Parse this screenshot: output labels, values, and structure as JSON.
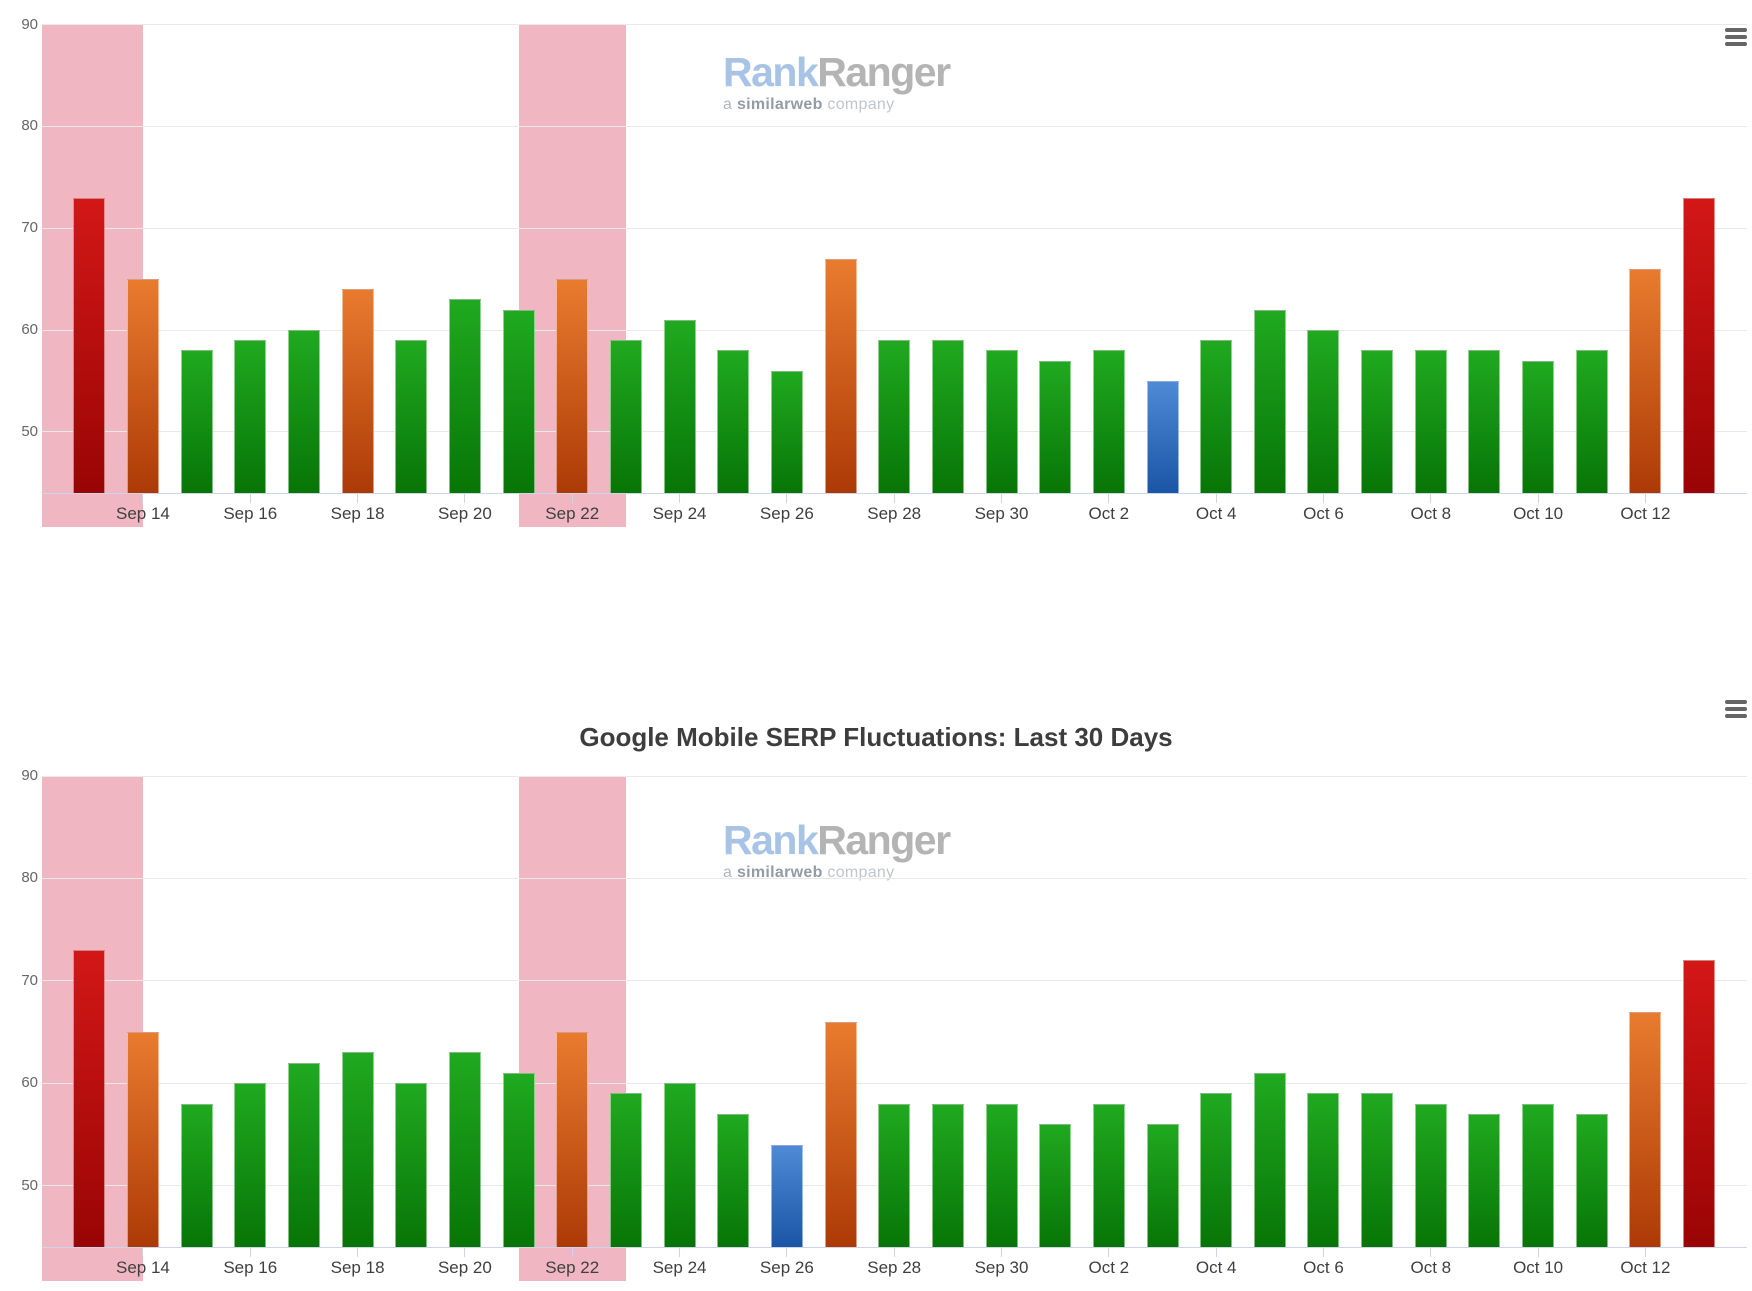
{
  "watermark": {
    "brand_primary": "Rank",
    "brand_secondary": "Ranger",
    "tagline_prefix": "a",
    "tagline_brand": "similarweb",
    "tagline_suffix": "company"
  },
  "icons": {
    "chart_menu": "hamburger-menu-icon"
  },
  "colors": {
    "green_top": "#20a920",
    "green_bottom": "#077506",
    "orange_top": "#e97b2f",
    "orange_bottom": "#ad3a06",
    "red_top": "#d31717",
    "red_bottom": "#9a0404",
    "blue_top": "#4e8ad6",
    "blue_bottom": "#1b55a6",
    "plot_band": "#f0b6c1",
    "grid_line": "#e9e9e9",
    "axis_line": "#ccd6eb",
    "x_label": "#3f3f3f",
    "y_label": "#666666",
    "title": "#3d3d3d",
    "menu_icon": "#666666",
    "logo_rank": "#a7c3e6",
    "logo_ranger": "#b4b4b4",
    "background": "#ffffff"
  },
  "chart_data": [
    {
      "type": "bar",
      "title": "",
      "categories": [
        "Sep 13",
        "Sep 14",
        "Sep 15",
        "Sep 16",
        "Sep 17",
        "Sep 18",
        "Sep 19",
        "Sep 20",
        "Sep 21",
        "Sep 22",
        "Sep 23",
        "Sep 24",
        "Sep 25",
        "Sep 26",
        "Sep 27",
        "Sep 28",
        "Sep 29",
        "Sep 30",
        "Oct 1",
        "Oct 2",
        "Oct 3",
        "Oct 4",
        "Oct 5",
        "Oct 6",
        "Oct 7",
        "Oct 8",
        "Oct 9",
        "Oct 10",
        "Oct 11",
        "Oct 12",
        "Oct 13"
      ],
      "values": [
        73,
        65,
        58,
        59,
        60,
        64,
        59,
        63,
        62,
        65,
        59,
        61,
        58,
        56,
        67,
        59,
        59,
        58,
        57,
        58,
        55,
        59,
        62,
        60,
        58,
        58,
        58,
        57,
        58,
        66,
        73
      ],
      "bar_colors": [
        "red",
        "orange",
        "green",
        "green",
        "green",
        "orange",
        "green",
        "green",
        "green",
        "orange",
        "green",
        "green",
        "green",
        "green",
        "orange",
        "green",
        "green",
        "green",
        "green",
        "green",
        "blue",
        "green",
        "green",
        "green",
        "green",
        "green",
        "green",
        "green",
        "green",
        "orange",
        "red"
      ],
      "ylim": [
        44,
        90
      ],
      "yticks": [
        90,
        80,
        70,
        60,
        50
      ],
      "x_tick_labels": [
        "Sep 14",
        "Sep 16",
        "Sep 18",
        "Sep 20",
        "Sep 22",
        "Sep 24",
        "Sep 26",
        "Sep 28",
        "Sep 30",
        "Oct 2",
        "Oct 4",
        "Oct 6",
        "Oct 8",
        "Oct 10",
        "Oct 12"
      ],
      "grid": true,
      "legend": false,
      "plot_bands": [
        {
          "from": "Sep 12",
          "from_index": -1,
          "to": "Sep 14",
          "to_index": 1
        },
        {
          "from": "Sep 21",
          "from_index": 8,
          "to": "Sep 23",
          "to_index": 10
        }
      ]
    },
    {
      "type": "bar",
      "title": "Google Mobile SERP Fluctuations: Last 30 Days",
      "categories": [
        "Sep 13",
        "Sep 14",
        "Sep 15",
        "Sep 16",
        "Sep 17",
        "Sep 18",
        "Sep 19",
        "Sep 20",
        "Sep 21",
        "Sep 22",
        "Sep 23",
        "Sep 24",
        "Sep 25",
        "Sep 26",
        "Sep 27",
        "Sep 28",
        "Sep 29",
        "Sep 30",
        "Oct 1",
        "Oct 2",
        "Oct 3",
        "Oct 4",
        "Oct 5",
        "Oct 6",
        "Oct 7",
        "Oct 8",
        "Oct 9",
        "Oct 10",
        "Oct 11",
        "Oct 12",
        "Oct 13"
      ],
      "values": [
        73,
        65,
        58,
        60,
        62,
        63,
        60,
        63,
        61,
        65,
        59,
        60,
        57,
        54,
        66,
        58,
        58,
        58,
        56,
        58,
        56,
        59,
        61,
        59,
        59,
        58,
        57,
        58,
        57,
        67,
        72
      ],
      "bar_colors": [
        "red",
        "orange",
        "green",
        "green",
        "green",
        "green",
        "green",
        "green",
        "green",
        "orange",
        "green",
        "green",
        "green",
        "blue",
        "orange",
        "green",
        "green",
        "green",
        "green",
        "green",
        "green",
        "green",
        "green",
        "green",
        "green",
        "green",
        "green",
        "green",
        "green",
        "orange",
        "red"
      ],
      "ylim": [
        44,
        90
      ],
      "yticks": [
        90,
        80,
        70,
        60,
        50
      ],
      "x_tick_labels": [
        "Sep 14",
        "Sep 16",
        "Sep 18",
        "Sep 20",
        "Sep 22",
        "Sep 24",
        "Sep 26",
        "Sep 28",
        "Sep 30",
        "Oct 2",
        "Oct 4",
        "Oct 6",
        "Oct 8",
        "Oct 10",
        "Oct 12"
      ],
      "grid": true,
      "legend": false,
      "plot_bands": [
        {
          "from": "Sep 12",
          "from_index": -1,
          "to": "Sep 14",
          "to_index": 1
        },
        {
          "from": "Sep 21",
          "from_index": 8,
          "to": "Sep 23",
          "to_index": 10
        }
      ]
    }
  ]
}
